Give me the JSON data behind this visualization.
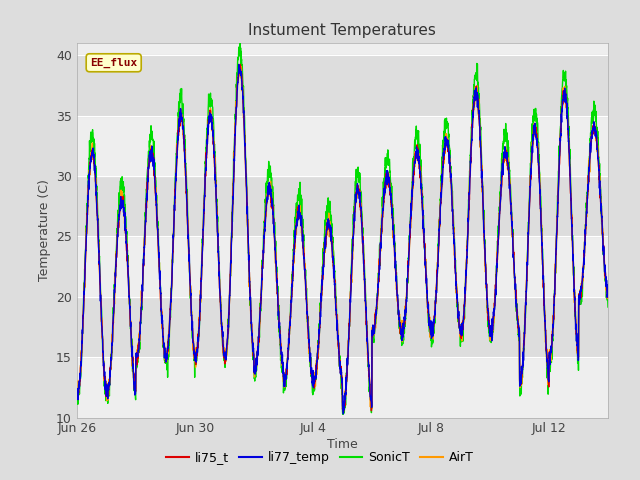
{
  "title": "Instument Temperatures",
  "xlabel": "Time",
  "ylabel": "Temperature (C)",
  "ylim": [
    10,
    41
  ],
  "yticks": [
    10,
    15,
    20,
    25,
    30,
    35,
    40
  ],
  "date_ticks": [
    "Jun 26",
    "Jun 30",
    "Jul 4",
    "Jul 8",
    "Jul 12"
  ],
  "date_tick_positions": [
    0,
    4,
    8,
    12,
    16
  ],
  "colors": {
    "li75_t": "#dd0000",
    "li77_temp": "#0000dd",
    "SonicT": "#00dd00",
    "AirT": "#ff9900"
  },
  "annotation_text": "EE_flux",
  "annotation_color": "#880000",
  "annotation_bg": "#ffffcc",
  "annotation_border": "#bbaa00",
  "outer_bg": "#dddddd",
  "plot_bg": "#eeeeee",
  "band_dark": "#dddddd",
  "band_light": "#eeeeee",
  "grid_color": "#ffffff",
  "linewidth": 1.0,
  "days": 18,
  "points_per_day": 144
}
